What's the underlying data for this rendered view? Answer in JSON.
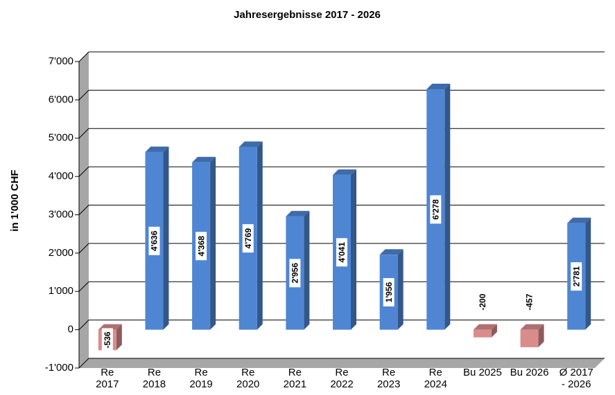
{
  "chart_data": {
    "type": "bar3d",
    "title": "Jahresergebnisse 2017 - 2026",
    "y_label": "in 1'000 CHF",
    "categories": [
      "Re 2017",
      "Re 2018",
      "Re 2019",
      "Re 2020",
      "Re 2021",
      "Re 2022",
      "Re 2023",
      "Re 2024",
      "Bu 2025",
      "Bu 2026",
      "Ø 2017 - 2026"
    ],
    "values": [
      -536,
      4636,
      4368,
      4769,
      2956,
      4041,
      1956,
      6278,
      -200,
      -457,
      2781
    ],
    "value_labels": [
      "-536",
      "4'636",
      "4'368",
      "4'769",
      "2'956",
      "4'041",
      "1'956",
      "6'278",
      "-200",
      "-457",
      "2'781"
    ],
    "colors": [
      "#d98c8c",
      "#4f86d4",
      "#4f86d4",
      "#4f86d4",
      "#4f86d4",
      "#4f86d4",
      "#4f86d4",
      "#4f86d4",
      "#d98c8c",
      "#d98c8c",
      "#4f86d4"
    ],
    "ylim": [
      -1000,
      7000
    ],
    "yticks": [
      {
        "value": -1000,
        "label": "-1'000"
      },
      0,
      {
        "value": 1000,
        "label": "1'000"
      },
      {
        "value": 2000,
        "label": "2'000"
      },
      {
        "value": 3000,
        "label": "3'000"
      },
      {
        "value": 4000,
        "label": "4'000"
      },
      {
        "value": 5000,
        "label": "5'000"
      },
      {
        "value": 6000,
        "label": "6'000"
      },
      {
        "value": 7000,
        "label": "7'000"
      }
    ],
    "grid": true
  }
}
